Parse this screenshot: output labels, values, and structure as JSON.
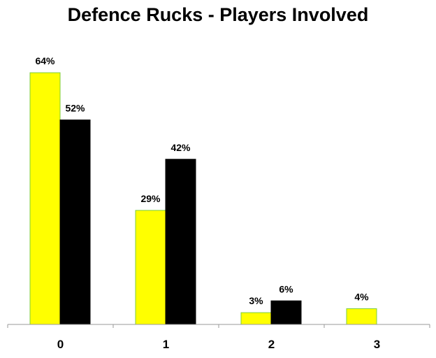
{
  "chart_data": {
    "type": "bar",
    "title": "Defence Rucks - Players Involved",
    "categories": [
      "0",
      "1",
      "2",
      "3"
    ],
    "series": [
      {
        "color": "#ffff00",
        "stroke": "#7ccd3c",
        "values": [
          64,
          29,
          3,
          4
        ],
        "labels": [
          "64%",
          "29%",
          "3%",
          "4%"
        ]
      },
      {
        "color": "#000000",
        "stroke": "#000000",
        "values": [
          52,
          42,
          6,
          null
        ],
        "labels": [
          "52%",
          "42%",
          "6%",
          ""
        ]
      }
    ],
    "xlabel": "",
    "ylabel": "",
    "ylim": [
      0,
      64
    ],
    "grid": false,
    "legend": "none"
  }
}
